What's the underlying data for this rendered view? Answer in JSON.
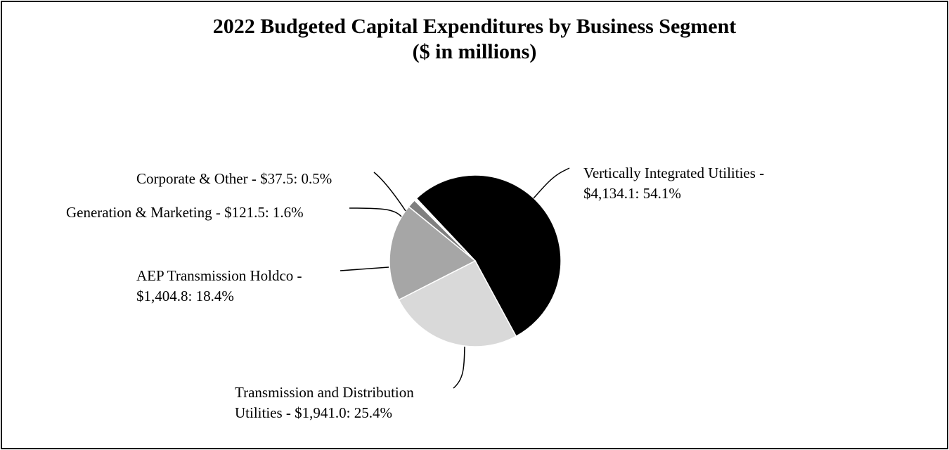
{
  "chart_data": {
    "type": "pie",
    "title": "2022 Budgeted Capital Expenditures by Business Segment",
    "subtitle": "($ in millions)",
    "slices": [
      {
        "name": "Vertically Integrated Utilities",
        "value": 4134.1,
        "percent": 54.1,
        "color": "#000000",
        "label_line1": "Vertically Integrated Utilities -",
        "label_line2": "$4,134.1: 54.1%"
      },
      {
        "name": "Transmission and Distribution Utilities",
        "value": 1941.0,
        "percent": 25.4,
        "color": "#d9d9d9",
        "label_line1": "Transmission and Distribution",
        "label_line2": "Utilities - $1,941.0: 25.4%"
      },
      {
        "name": "AEP Transmission Holdco",
        "value": 1404.8,
        "percent": 18.4,
        "color": "#a6a6a6",
        "label_line1": "AEP Transmission Holdco -",
        "label_line2": "$1,404.8: 18.4%"
      },
      {
        "name": "Generation & Marketing",
        "value": 121.5,
        "percent": 1.6,
        "color": "#7f7f7f",
        "label_line1": "Generation & Marketing - $121.5: 1.6%",
        "label_line2": ""
      },
      {
        "name": "Corporate & Other",
        "value": 37.5,
        "percent": 0.5,
        "color": "#ffffff",
        "label_line1": "Corporate & Other - $37.5: 0.5%",
        "label_line2": ""
      }
    ]
  }
}
